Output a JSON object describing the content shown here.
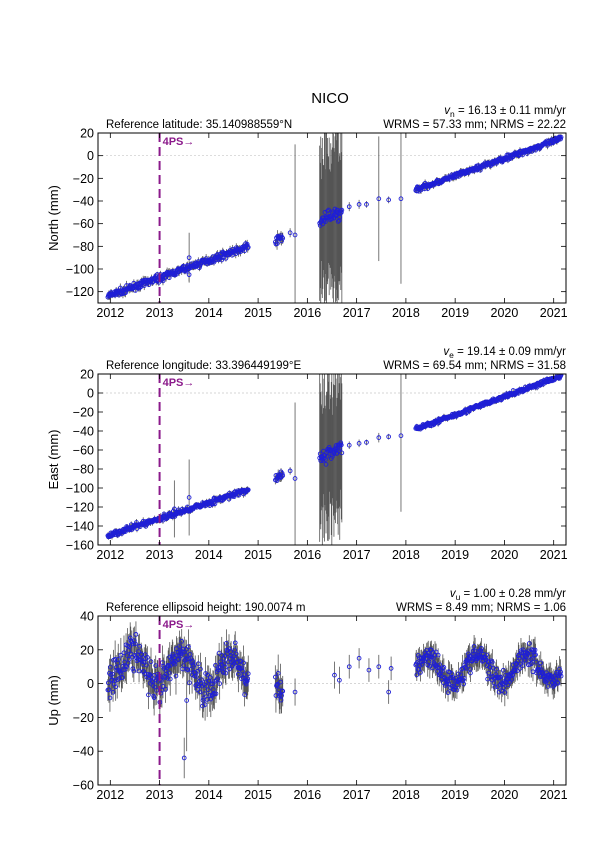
{
  "title": "NICO",
  "colors": {
    "points": "#1f1fd6",
    "errorbars": "#555555",
    "event": "#8b1a8b",
    "grid": "#c8c8c8"
  },
  "chart_data": [
    {
      "type": "scatter",
      "ylabel": "North (mm)",
      "reference": "Reference latitude: 35.140988559°N",
      "velocity": {
        "sym": "v",
        "sub": "n",
        "text": " = 16.13 ± 0.11 mm/yr"
      },
      "wrms": "WRMS = 57.33 mm; NRMS = 22.22",
      "ylim": [
        -130,
        20
      ],
      "yticks": [
        "20",
        "0",
        "−20",
        "−40",
        "−60",
        "−80",
        "−100",
        "−120"
      ],
      "ytick_values": [
        20,
        0,
        -20,
        -40,
        -60,
        -80,
        -100,
        -120
      ],
      "xlim": [
        2011.75,
        2021.25
      ],
      "xticks": [
        "2012",
        "2013",
        "2014",
        "2015",
        "2016",
        "2017",
        "2018",
        "2019",
        "2020",
        "2021"
      ],
      "xtick_values": [
        2012,
        2013,
        2014,
        2015,
        2016,
        2017,
        2018,
        2019,
        2020,
        2021
      ],
      "event": {
        "label": "4PS→",
        "x": 2013.0
      },
      "segments": [
        {
          "x": [
            2011.95,
            2014.8
          ],
          "y": [
            -124,
            -80
          ],
          "noise": 2.5,
          "err": 3
        },
        {
          "x": [
            2015.35,
            2015.5
          ],
          "y": [
            -75,
            -72
          ],
          "noise": 3,
          "err": 4
        },
        {
          "x": [
            2016.25,
            2016.7
          ],
          "y": [
            -58,
            -50
          ],
          "noise": 6,
          "err": 60
        },
        {
          "x": [
            2018.2,
            2021.15
          ],
          "y": [
            -30,
            15
          ],
          "noise": 2,
          "err": 2.5
        }
      ],
      "points": [
        {
          "x": 2013.6,
          "y": -105,
          "err": 6
        },
        {
          "x": 2013.6,
          "y": -90,
          "err": 22
        },
        {
          "x": 2015.65,
          "y": -68,
          "err": 4
        },
        {
          "x": 2015.75,
          "y": -70,
          "err": 80
        },
        {
          "x": 2016.85,
          "y": -45,
          "err": 4
        },
        {
          "x": 2017.05,
          "y": -43,
          "err": 4
        },
        {
          "x": 2017.2,
          "y": -43,
          "err": 3
        },
        {
          "x": 2017.45,
          "y": -38,
          "err": 55
        },
        {
          "x": 2017.65,
          "y": -39,
          "err": 3
        },
        {
          "x": 2017.9,
          "y": -38,
          "err": 75
        },
        {
          "x": 2016.6,
          "y": -48,
          "err": 2
        }
      ]
    },
    {
      "type": "scatter",
      "ylabel": "East (mm)",
      "reference": "Reference longitude: 33.396449199°E",
      "velocity": {
        "sym": "v",
        "sub": "e",
        "text": " = 19.14 ± 0.09 mm/yr"
      },
      "wrms": "WRMS = 69.54 mm; NRMS = 31.58",
      "ylim": [
        -160,
        20
      ],
      "yticks": [
        "20",
        "0",
        "−20",
        "−40",
        "−60",
        "−80",
        "−100",
        "−120",
        "−140",
        "−160"
      ],
      "ytick_values": [
        20,
        0,
        -20,
        -40,
        -60,
        -80,
        -100,
        -120,
        -140,
        -160
      ],
      "xlim": [
        2011.75,
        2021.25
      ],
      "xticks": [
        "2012",
        "2013",
        "2014",
        "2015",
        "2016",
        "2017",
        "2018",
        "2019",
        "2020",
        "2021"
      ],
      "xtick_values": [
        2012,
        2013,
        2014,
        2015,
        2016,
        2017,
        2018,
        2019,
        2020,
        2021
      ],
      "event": {
        "label": "4PS→",
        "x": 2013.0
      },
      "segments": [
        {
          "x": [
            2011.95,
            2014.8
          ],
          "y": [
            -150,
            -102
          ],
          "noise": 2.5,
          "err": 3
        },
        {
          "x": [
            2015.35,
            2015.5
          ],
          "y": [
            -90,
            -85
          ],
          "noise": 3,
          "err": 4
        },
        {
          "x": [
            2016.25,
            2016.7
          ],
          "y": [
            -70,
            -55
          ],
          "noise": 8,
          "err": 70
        },
        {
          "x": [
            2018.2,
            2021.15
          ],
          "y": [
            -38,
            18
          ],
          "noise": 2,
          "err": 2.5
        }
      ],
      "points": [
        {
          "x": 2013.3,
          "y": -122,
          "err": 30
        },
        {
          "x": 2013.6,
          "y": -110,
          "err": 40
        },
        {
          "x": 2015.65,
          "y": -82,
          "err": 4
        },
        {
          "x": 2015.75,
          "y": -90,
          "err": 80
        },
        {
          "x": 2016.3,
          "y": -68,
          "err": 70
        },
        {
          "x": 2016.85,
          "y": -55,
          "err": 4
        },
        {
          "x": 2017.05,
          "y": -53,
          "err": 4
        },
        {
          "x": 2017.2,
          "y": -52,
          "err": 3
        },
        {
          "x": 2017.45,
          "y": -47,
          "err": 5
        },
        {
          "x": 2017.65,
          "y": -46,
          "err": 3
        },
        {
          "x": 2017.9,
          "y": -45,
          "err": 80
        }
      ]
    },
    {
      "type": "scatter",
      "ylabel": "Up (mm)",
      "reference": "Reference ellipsoid height: 190.0074 m",
      "velocity": {
        "sym": "v",
        "sub": "u",
        "text": " = 1.00 ± 0.28 mm/yr"
      },
      "wrms": "WRMS = 8.49 mm; NRMS = 1.06",
      "ylim": [
        -60,
        40
      ],
      "yticks": [
        "40",
        "20",
        "0",
        "−20",
        "−40",
        "−60"
      ],
      "ytick_values": [
        40,
        20,
        0,
        -20,
        -40,
        -60
      ],
      "xlim": [
        2011.75,
        2021.25
      ],
      "xticks": [
        "2012",
        "2013",
        "2014",
        "2015",
        "2016",
        "2017",
        "2018",
        "2019",
        "2020",
        "2021"
      ],
      "xtick_values": [
        2012,
        2013,
        2014,
        2015,
        2016,
        2017,
        2018,
        2019,
        2020,
        2021
      ],
      "event": {
        "label": "4PS→",
        "x": 2013.0
      },
      "segments": [
        {
          "x": [
            2011.95,
            2014.8
          ],
          "y": [
            10,
            5
          ],
          "noise": 9,
          "err": 8,
          "wave": 10
        },
        {
          "x": [
            2015.35,
            2015.5
          ],
          "y": [
            0,
            -5
          ],
          "noise": 8,
          "err": 9
        },
        {
          "x": [
            2018.2,
            2021.15
          ],
          "y": [
            8,
            10
          ],
          "noise": 6,
          "err": 6,
          "wave": 8
        }
      ],
      "points": [
        {
          "x": 2013.5,
          "y": -44,
          "err": 12
        },
        {
          "x": 2013.55,
          "y": -10,
          "err": 30
        },
        {
          "x": 2015.75,
          "y": -5,
          "err": 8
        },
        {
          "x": 2016.55,
          "y": 5,
          "err": 8
        },
        {
          "x": 2016.65,
          "y": 2,
          "err": 8
        },
        {
          "x": 2016.85,
          "y": 10,
          "err": 7
        },
        {
          "x": 2017.05,
          "y": 15,
          "err": 6
        },
        {
          "x": 2017.25,
          "y": 8,
          "err": 7
        },
        {
          "x": 2017.45,
          "y": 10,
          "err": 7
        },
        {
          "x": 2017.65,
          "y": -5,
          "err": 7
        },
        {
          "x": 2017.7,
          "y": 9,
          "err": 7
        }
      ]
    }
  ]
}
